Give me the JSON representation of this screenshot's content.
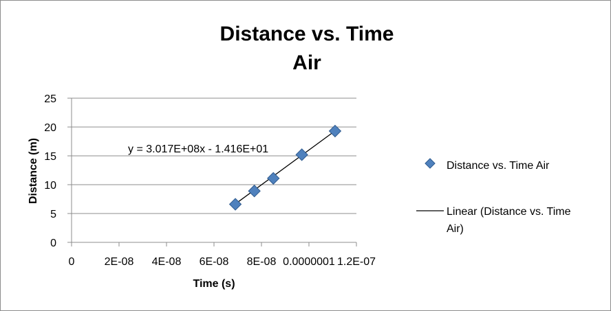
{
  "chart_data": {
    "type": "scatter",
    "title_lines": [
      "Distance vs. Time",
      "Air"
    ],
    "xlabel": "Time (s)",
    "ylabel": "Distance (m)",
    "xlim": [
      0,
      1.2e-07
    ],
    "ylim": [
      0,
      25
    ],
    "x_tick_labels": [
      "0",
      "2E-08",
      "4E-08",
      "6E-08",
      "8E-08",
      "0.0000001",
      "1.2E-07"
    ],
    "y_tick_labels": [
      "0",
      "5",
      "10",
      "15",
      "20",
      "25"
    ],
    "grid": "horizontal",
    "legend_position": "right",
    "series": [
      {
        "name": "Distance vs. Time Air",
        "marker": "diamond",
        "color": "#4f81bd",
        "points": [
          {
            "x": 6.9e-08,
            "y": 6.6
          },
          {
            "x": 7.7e-08,
            "y": 8.9
          },
          {
            "x": 8.5e-08,
            "y": 11.1
          },
          {
            "x": 9.7e-08,
            "y": 15.2
          },
          {
            "x": 1.11e-07,
            "y": 19.3
          }
        ]
      },
      {
        "name": "Linear (Distance vs. Time Air)",
        "legend_lines": [
          "Linear (Distance vs. Time",
          "Air)"
        ],
        "type": "trendline",
        "color": "#000000",
        "slope": 301700000,
        "intercept": -14.16,
        "x_range": [
          6.9e-08,
          1.11e-07
        ]
      }
    ],
    "annotation": "y = 3.017E+08x - 1.416E+01"
  }
}
